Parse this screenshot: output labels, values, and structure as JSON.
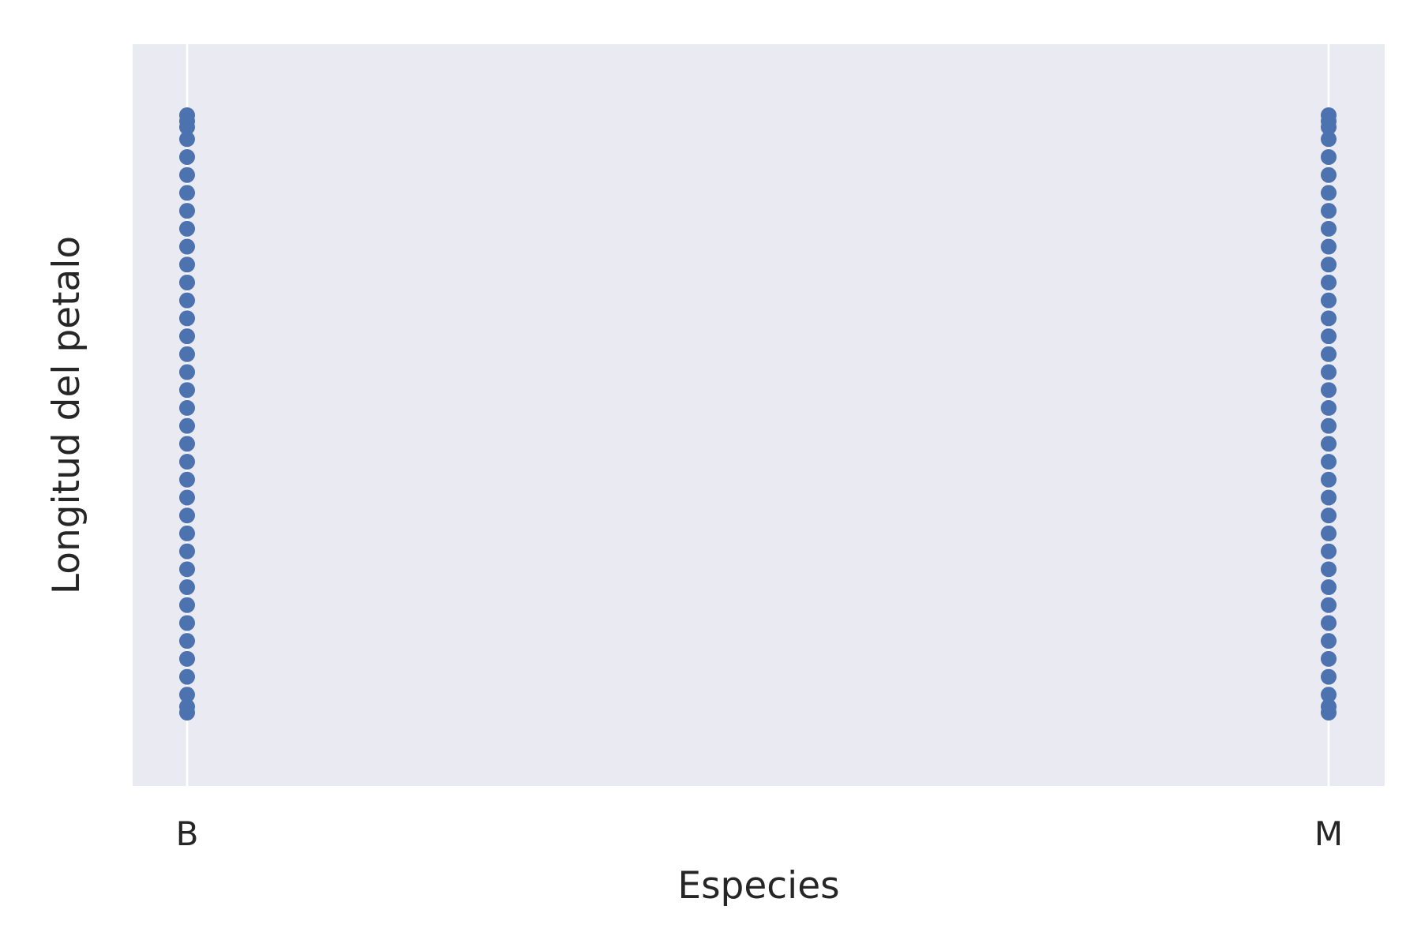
{
  "chart_data": {
    "type": "scatter",
    "title": "",
    "xlabel": "Especies",
    "ylabel": "Longitud del petalo",
    "categories": [
      "B",
      "M"
    ],
    "ylim": [
      -0.1,
      1.1
    ],
    "grid": true,
    "legend": "none",
    "series": [
      {
        "category": "B",
        "values": [
          0.0,
          0.01,
          0.03,
          0.06,
          0.09,
          0.12,
          0.15,
          0.18,
          0.21,
          0.24,
          0.27,
          0.3,
          0.33,
          0.36,
          0.39,
          0.42,
          0.45,
          0.48,
          0.51,
          0.54,
          0.57,
          0.6,
          0.63,
          0.66,
          0.69,
          0.72,
          0.75,
          0.78,
          0.81,
          0.84,
          0.87,
          0.9,
          0.93,
          0.96,
          0.98,
          0.99,
          1.0
        ]
      },
      {
        "category": "M",
        "values": [
          0.0,
          0.01,
          0.03,
          0.06,
          0.09,
          0.12,
          0.15,
          0.18,
          0.21,
          0.24,
          0.27,
          0.3,
          0.33,
          0.36,
          0.39,
          0.42,
          0.45,
          0.48,
          0.51,
          0.54,
          0.57,
          0.6,
          0.63,
          0.66,
          0.69,
          0.72,
          0.75,
          0.78,
          0.81,
          0.84,
          0.87,
          0.9,
          0.93,
          0.96,
          0.98,
          0.99,
          1.0
        ]
      }
    ],
    "colors": {
      "point": "#4c72b0",
      "plot_background": "#eaeaf2",
      "grid": "#ffffff",
      "text": "#262626"
    }
  }
}
